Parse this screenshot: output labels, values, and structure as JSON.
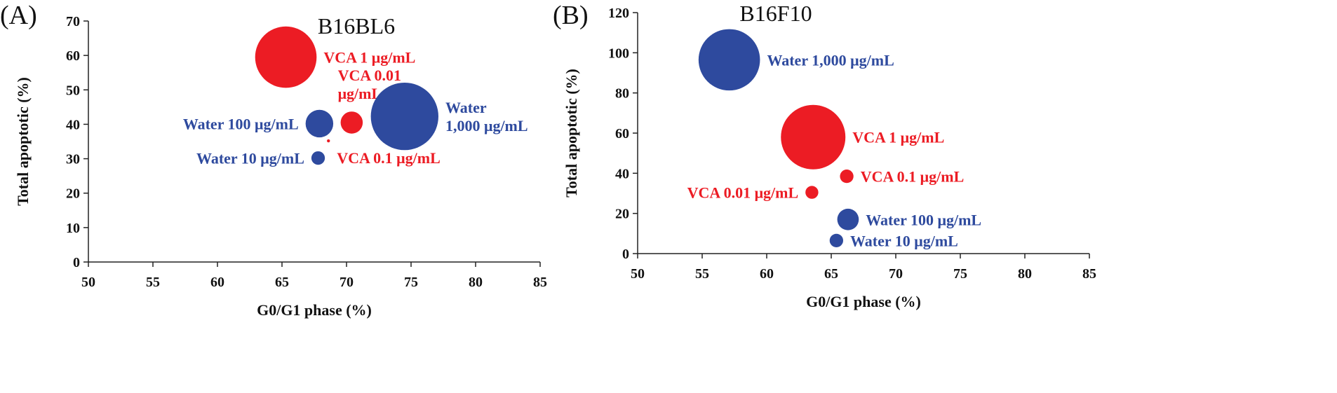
{
  "colors": {
    "red": "#ec1c24",
    "blue": "#2e4a9e",
    "axis": "#222222"
  },
  "chart_data": [
    {
      "id": "A",
      "type": "bubble",
      "panel_label": "(A)",
      "title": "B16BL6",
      "xlabel": "G0/G1 phase (%)",
      "ylabel": "Total apoptotic (%)",
      "xlim": [
        50,
        85
      ],
      "ylim": [
        0,
        70
      ],
      "xticks": [
        "50",
        "55",
        "60",
        "65",
        "70",
        "75",
        "80",
        "85"
      ],
      "yticks": [
        "0",
        "10",
        "20",
        "30",
        "40",
        "50",
        "60",
        "70"
      ],
      "grid": false,
      "points": [
        {
          "series": "VCA",
          "label": "VCA 1 μg/mL",
          "label_lines": [
            "VCA 1 μg/mL"
          ],
          "label_pos": "right",
          "x": 65.3,
          "y": 59.5,
          "size": 10
        },
        {
          "series": "VCA",
          "label": "VCA 0.01 μg/mL",
          "label_lines": [
            "VCA 0.01",
            "μg/mL"
          ],
          "label_pos": "above",
          "x": 70.4,
          "y": 40.5,
          "size": 3.6
        },
        {
          "series": "VCA",
          "label": "VCA 0.1 μg/mL",
          "label_lines": [
            "VCA 0.1 μg/mL"
          ],
          "label_pos": "right-low",
          "x": 68.6,
          "y": 35.2,
          "size": 0.5
        },
        {
          "series": "Water",
          "label": "Water 1,000 μg/mL",
          "label_lines": [
            "Water",
            "1,000 μg/mL"
          ],
          "label_pos": "right",
          "x": 74.5,
          "y": 42.3,
          "size": 11
        },
        {
          "series": "Water",
          "label": "Water 100 μg/mL",
          "label_lines": [
            "Water 100 μg/mL"
          ],
          "label_pos": "left",
          "x": 67.9,
          "y": 40.2,
          "size": 4.5
        },
        {
          "series": "Water",
          "label": "Water 10 μg/mL",
          "label_lines": [
            "Water 10 μg/mL"
          ],
          "label_pos": "left",
          "x": 67.8,
          "y": 30.2,
          "size": 2.2
        }
      ]
    },
    {
      "id": "B",
      "type": "bubble",
      "panel_label": "(B)",
      "title": "B16F10",
      "xlabel": "G0/G1 phase (%)",
      "ylabel": "Total apoptotic (%)",
      "xlim": [
        50,
        85
      ],
      "ylim": [
        0,
        120
      ],
      "xticks": [
        "50",
        "55",
        "60",
        "65",
        "70",
        "75",
        "80",
        "85"
      ],
      "yticks": [
        "0",
        "20",
        "40",
        "60",
        "80",
        "100",
        "120"
      ],
      "grid": false,
      "points": [
        {
          "series": "Water",
          "label": "Water 1,000 μg/mL",
          "label_lines": [
            "Water 1,000 μg/mL"
          ],
          "label_pos": "right",
          "x": 57.1,
          "y": 96.5,
          "size": 10
        },
        {
          "series": "VCA",
          "label": "VCA 1 μg/mL",
          "label_lines": [
            "VCA 1 μg/mL"
          ],
          "label_pos": "right",
          "x": 63.6,
          "y": 58,
          "size": 10.5
        },
        {
          "series": "VCA",
          "label": "VCA 0.1 μg/mL",
          "label_lines": [
            "VCA 0.1 μg/mL"
          ],
          "label_pos": "right",
          "x": 66.2,
          "y": 38.5,
          "size": 2.2
        },
        {
          "series": "VCA",
          "label": "VCA 0.01 μg/mL",
          "label_lines": [
            "VCA 0.01 μg/mL"
          ],
          "label_pos": "left",
          "x": 63.5,
          "y": 30.5,
          "size": 2.1
        },
        {
          "series": "Water",
          "label": "Water 100 μg/mL",
          "label_lines": [
            "Water 100 μg/mL"
          ],
          "label_pos": "right",
          "x": 66.3,
          "y": 17,
          "size": 3.5
        },
        {
          "series": "Water",
          "label": "Water 10 μg/mL",
          "label_lines": [
            "Water 10 μg/mL"
          ],
          "label_pos": "right",
          "x": 65.4,
          "y": 6.5,
          "size": 2.2
        }
      ]
    }
  ]
}
